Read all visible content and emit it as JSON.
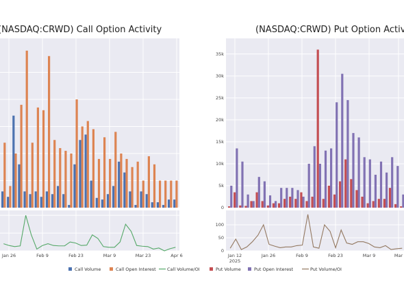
{
  "charts": [
    {
      "type": "bar",
      "title": "(NASDAQ:CRWD) Call Option Activity",
      "x_ticks": [
        "Jan 26",
        "Feb 9",
        "Feb 23",
        "Mar 9",
        "Mar 23",
        "Apr 6"
      ],
      "upper": {
        "series": [
          {
            "name": "Call Volume",
            "color": "#4c72b0",
            "values": [
              3,
              2,
              17,
              8,
              3,
              2.5,
              3,
              2,
              3,
              2.5,
              4,
              2.5,
              0.5,
              8,
              12.5,
              13.5,
              5,
              1.8,
              1.5,
              2.5,
              4,
              8.5,
              6.5,
              3,
              0.5,
              3,
              2.5,
              1,
              1,
              0.5,
              1.5,
              1.5
            ]
          },
          {
            "name": "Call Open Interest",
            "color": "#dd8452",
            "values": [
              12,
              4,
              10,
              19,
              29,
              12,
              18.5,
              18,
              28,
              12.5,
              11,
              10.5,
              10,
              20,
              15,
              16,
              14.5,
              9,
              13,
              9,
              14,
              10,
              9,
              7.5,
              8.5,
              5,
              9.5,
              8,
              5,
              5,
              5,
              5
            ]
          }
        ]
      },
      "lower": {
        "series": [
          {
            "name": "Call Volume/OI",
            "color": "#55a868",
            "values": [
              20,
              15,
              12,
              14,
              100,
              45,
              5,
              15,
              20,
              15,
              14,
              14,
              25,
              22,
              15,
              16,
              45,
              35,
              12,
              10,
              10,
              25,
              75,
              55,
              15,
              13,
              12,
              5,
              8,
              0,
              6,
              10
            ]
          }
        ]
      }
    },
    {
      "type": "bar",
      "title": "(NASDAQ:CRWD) Put Option Activity",
      "x_ticks": [
        "Jan 12\n2025",
        "Jan 26",
        "Feb 9",
        "Feb 23",
        "Mar 9",
        "Mar"
      ],
      "upper": {
        "ylabels": [
          "0",
          "5k",
          "10k",
          "15k",
          "20k",
          "25k",
          "30k",
          "35k"
        ],
        "series": [
          {
            "name": "Put Volume",
            "color": "#c44e52",
            "values": [
              300,
              3500,
              500,
              400,
              1500,
              3500,
              1500,
              500,
              1000,
              1000,
              2000,
              2500,
              2000,
              3500,
              1500,
              2500,
              36000,
              2000,
              5000,
              3000,
              6000,
              11000,
              6500,
              4000,
              2500,
              1000,
              1500,
              2000,
              2000,
              4500,
              800,
              300
            ]
          },
          {
            "name": "Put Open Interest",
            "color": "#8172b3",
            "values": [
              5000,
              13500,
              10500,
              3000,
              1500,
              7000,
              6000,
              2800,
              1500,
              4500,
              4500,
              4500,
              4000,
              2500,
              10000,
              14000,
              10000,
              13000,
              13500,
              24000,
              30500,
              24500,
              17000,
              16000,
              11500,
              11000,
              7500,
              10500,
              8000,
              11500,
              9500,
              3000
            ]
          }
        ]
      },
      "lower": {
        "ylabels": [
          "0",
          "50",
          "100"
        ],
        "series": [
          {
            "name": "Put Volume/OI",
            "color": "#937860",
            "values": [
              10,
              45,
              5,
              15,
              35,
              60,
              100,
              25,
              18,
              12,
              15,
              15,
              20,
              22,
              140,
              15,
              10,
              100,
              75,
              12,
              80,
              30,
              25,
              35,
              35,
              28,
              15,
              12,
              20,
              5,
              8,
              10
            ]
          }
        ]
      }
    }
  ],
  "legend": [
    {
      "label": "Call Volume",
      "color": "#4c72b0",
      "kind": "patch"
    },
    {
      "label": "Call Open Interest",
      "color": "#dd8452",
      "kind": "patch"
    },
    {
      "label": "Call Volume/OI",
      "color": "#55a868",
      "kind": "line"
    },
    {
      "label": "Put Volume",
      "color": "#c44e52",
      "kind": "patch"
    },
    {
      "label": "Put Open Interest",
      "color": "#8172b3",
      "kind": "patch"
    },
    {
      "label": "Put Volume/OI",
      "color": "#937860",
      "kind": "line"
    }
  ],
  "chart_data": [
    {
      "type": "bar",
      "title": "(NASDAQ:CRWD) Call Option Activity",
      "x_ticks": [
        "Jan 26",
        "Feb 9",
        "Feb 23",
        "Mar 9",
        "Mar 23",
        "Apr 6"
      ],
      "series": [
        {
          "name": "Call Volume",
          "values": [
            3,
            2,
            17,
            8,
            3,
            2.5,
            3,
            2,
            3,
            2.5,
            4,
            2.5,
            0.5,
            8,
            12.5,
            13.5,
            5,
            1.8,
            1.5,
            2.5,
            4,
            8.5,
            6.5,
            3,
            0.5,
            3,
            2.5,
            1,
            1,
            0.5,
            1.5,
            1.5
          ]
        },
        {
          "name": "Call Open Interest",
          "values": [
            12,
            4,
            10,
            19,
            29,
            12,
            18.5,
            18,
            28,
            12.5,
            11,
            10.5,
            10,
            20,
            15,
            16,
            14.5,
            9,
            13,
            9,
            14,
            10,
            9,
            7.5,
            8.5,
            5,
            9.5,
            8,
            5,
            5,
            5,
            5
          ]
        },
        {
          "name": "Call Volume/OI",
          "values": [
            20,
            15,
            12,
            14,
            100,
            45,
            5,
            15,
            20,
            15,
            14,
            14,
            25,
            22,
            15,
            16,
            45,
            35,
            12,
            10,
            10,
            25,
            75,
            55,
            15,
            13,
            12,
            5,
            8,
            0,
            6,
            10
          ]
        }
      ]
    },
    {
      "type": "bar",
      "title": "(NASDAQ:CRWD) Put Option Activity",
      "x_ticks": [
        "Jan 12 2025",
        "Jan 26",
        "Feb 9",
        "Feb 23",
        "Mar 9",
        "Mar"
      ],
      "ylim": [
        0,
        37000
      ],
      "series": [
        {
          "name": "Put Volume",
          "values": [
            300,
            3500,
            500,
            400,
            1500,
            3500,
            1500,
            500,
            1000,
            1000,
            2000,
            2500,
            2000,
            3500,
            1500,
            2500,
            36000,
            2000,
            5000,
            3000,
            6000,
            11000,
            6500,
            4000,
            2500,
            1000,
            1500,
            2000,
            2000,
            4500,
            800,
            300
          ]
        },
        {
          "name": "Put Open Interest",
          "values": [
            5000,
            13500,
            10500,
            3000,
            1500,
            7000,
            6000,
            2800,
            1500,
            4500,
            4500,
            4500,
            4000,
            2500,
            10000,
            14000,
            10000,
            13000,
            13500,
            24000,
            30500,
            24500,
            17000,
            16000,
            11500,
            11000,
            7500,
            10500,
            8000,
            11500,
            9500,
            3000
          ]
        },
        {
          "name": "Put Volume/OI",
          "values": [
            10,
            45,
            5,
            15,
            35,
            60,
            100,
            25,
            18,
            12,
            15,
            15,
            20,
            22,
            140,
            15,
            10,
            100,
            75,
            12,
            80,
            30,
            25,
            35,
            35,
            28,
            15,
            12,
            20,
            5,
            8,
            10
          ]
        }
      ]
    }
  ]
}
